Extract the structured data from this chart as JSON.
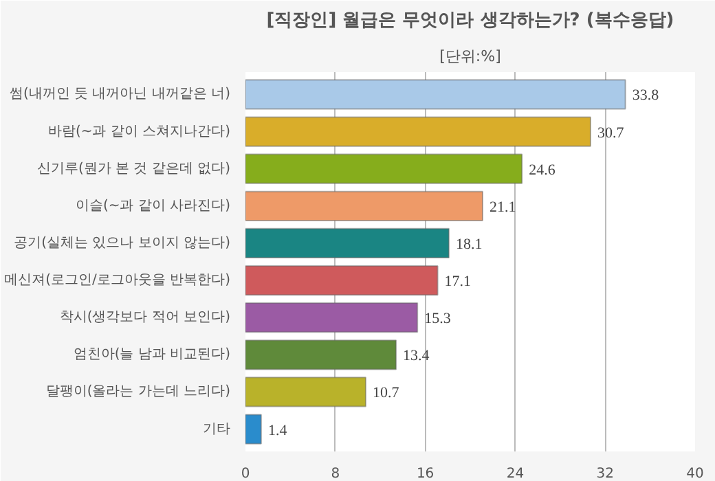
{
  "chart_data": {
    "type": "bar",
    "orientation": "horizontal",
    "title": "[직장인] 월급은 무엇이라 생각하는가? (복수응답)",
    "subtitle": "[단위:%]",
    "categories": [
      "썸(내꺼인 듯 내꺼아닌 내꺼같은 너)",
      "바람(~과 같이 스쳐지나간다)",
      "신기루(뭔가 본 것 같은데 없다)",
      "이슬(~과 같이 사라진다)",
      "공기(실체는 있으나 보이지 않는다)",
      "메신져(로그인/로그아웃을 반복한다)",
      "착시(생각보다 적어 보인다)",
      "엄친아(늘 남과 비교된다)",
      "달팽이(올라는 가는데 느리다)",
      "기타"
    ],
    "values": [
      33.8,
      30.7,
      24.6,
      21.1,
      18.1,
      17.1,
      15.3,
      13.4,
      10.7,
      1.4
    ],
    "colors": [
      "#a9c9e8",
      "#d9ad2a",
      "#86ad1c",
      "#ee9a68",
      "#1a8583",
      "#cf5a5c",
      "#9b5ba4",
      "#5f8a3a",
      "#b9b22a",
      "#2a8ccc"
    ],
    "xlim": [
      0,
      40
    ],
    "xticks": [
      0,
      8,
      16,
      24,
      32,
      40
    ],
    "grid": "x",
    "data_labels": true
  }
}
